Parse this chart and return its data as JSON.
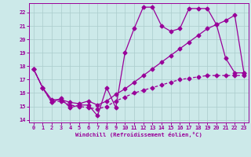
{
  "xlabel": "Windchill (Refroidissement éolien,°C)",
  "xlim": [
    -0.5,
    23.5
  ],
  "ylim": [
    13.8,
    22.7
  ],
  "xticks": [
    0,
    1,
    2,
    3,
    4,
    5,
    6,
    7,
    8,
    9,
    10,
    11,
    12,
    13,
    14,
    15,
    16,
    17,
    18,
    19,
    20,
    21,
    22,
    23
  ],
  "yticks": [
    14,
    15,
    16,
    17,
    18,
    19,
    20,
    21,
    22
  ],
  "bg_color": "#cce9e9",
  "line_color": "#990099",
  "grid_color": "#aacccc",
  "line1_y": [
    17.8,
    16.4,
    15.3,
    15.6,
    14.9,
    15.1,
    15.1,
    14.3,
    16.4,
    14.9,
    19.0,
    20.8,
    22.4,
    22.4,
    21.0,
    20.6,
    20.8,
    22.3,
    22.3,
    22.3,
    21.1,
    18.6,
    17.5,
    17.5
  ],
  "line2_y": [
    17.8,
    16.4,
    15.5,
    15.5,
    15.3,
    15.2,
    15.4,
    15.1,
    15.4,
    15.9,
    16.3,
    16.8,
    17.3,
    17.8,
    18.3,
    18.8,
    19.3,
    19.8,
    20.3,
    20.8,
    21.1,
    21.4,
    21.8,
    17.5
  ],
  "line3_y": [
    17.8,
    16.4,
    15.3,
    15.4,
    15.1,
    15.0,
    14.9,
    14.8,
    15.0,
    15.4,
    15.7,
    16.0,
    16.2,
    16.4,
    16.6,
    16.8,
    17.0,
    17.1,
    17.2,
    17.3,
    17.3,
    17.3,
    17.3,
    17.3
  ]
}
